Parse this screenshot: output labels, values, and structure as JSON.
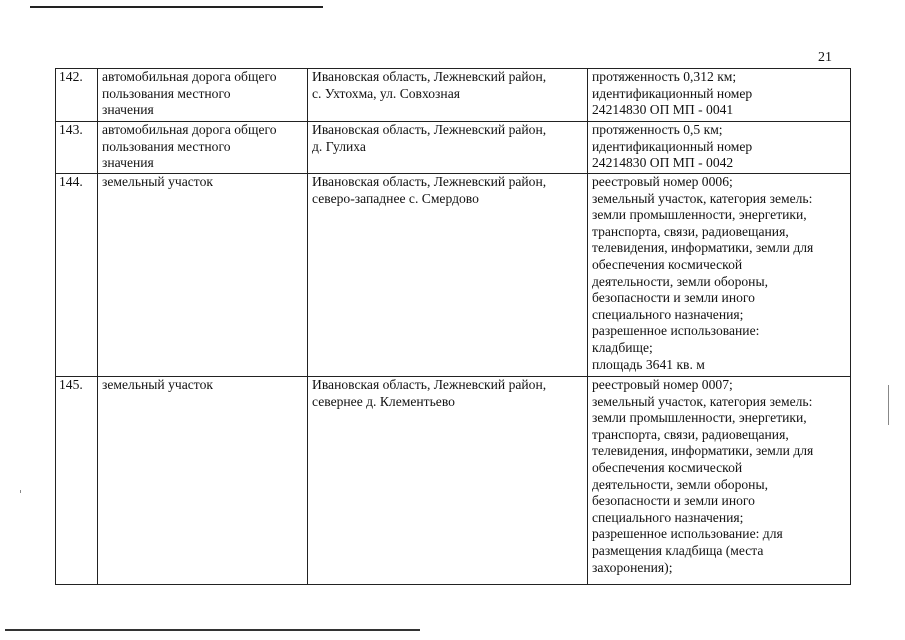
{
  "page_number": "21",
  "rows": [
    {
      "num": "142.",
      "name": [
        "автомобильная дорога общего",
        "пользования местного",
        "значения"
      ],
      "address": [
        "Ивановская область, Лежневский район,",
        "с. Ухтохма, ул. Совхозная"
      ],
      "description": [
        "протяженность 0,312 км;",
        "идентификационный номер",
        "24214830 ОП МП - 0041"
      ]
    },
    {
      "num": "143.",
      "name": [
        "автомобильная дорога общего",
        "пользования местного",
        "значения"
      ],
      "address": [
        "Ивановская область, Лежневский район,",
        "д. Гулиха"
      ],
      "description": [
        "протяженность 0,5 км;",
        "идентификационный номер",
        "24214830 ОП МП - 0042"
      ]
    },
    {
      "num": "144.",
      "name": [
        "земельный участок"
      ],
      "address": [
        "Ивановская область, Лежневский район,",
        "северо-западнее с. Смердово"
      ],
      "description": [
        "реестровый номер 0006;",
        "земельный участок, категория земель:",
        "земли промышленности, энергетики,",
        "транспорта, связи, радиовещания,",
        "телевидения, информатики, земли для",
        "обеспечения космической",
        "деятельности, земли обороны,",
        "безопасности и земли иного",
        "специального назначения;",
        "разрешенное использование:",
        "кладбище;",
        "площадь 3641 кв. м"
      ]
    },
    {
      "num": "145.",
      "name": [
        "земельный участок"
      ],
      "address": [
        "Ивановская область, Лежневский район,",
        "севернее д. Клементьево"
      ],
      "description": [
        "реестровый номер 0007;",
        "земельный участок, категория земель:",
        "земли промышленности, энергетики,",
        "транспорта, связи, радиовещания,",
        "телевидения, информатики, земли для",
        "обеспечения космической",
        "деятельности, земли обороны,",
        "безопасности и земли иного",
        "специального назначения;",
        "разрешенное использование: для",
        "размещения кладбища (места",
        "захоронения);"
      ]
    }
  ]
}
